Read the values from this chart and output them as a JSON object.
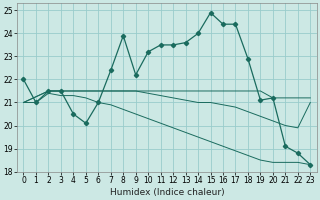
{
  "xlabel": "Humidex (Indice chaleur)",
  "bg_color": "#cce8e4",
  "grid_color": "#99cccc",
  "line_color": "#1a6b5e",
  "xlim": [
    -0.5,
    23.5
  ],
  "ylim": [
    18.0,
    25.3
  ],
  "yticks": [
    18,
    19,
    20,
    21,
    22,
    23,
    24,
    25
  ],
  "xticks": [
    0,
    1,
    2,
    3,
    4,
    5,
    6,
    7,
    8,
    9,
    10,
    11,
    12,
    13,
    14,
    15,
    16,
    17,
    18,
    19,
    20,
    21,
    22,
    23
  ],
  "line1_x": [
    0,
    1,
    2,
    3,
    4,
    5,
    6,
    7,
    8,
    9,
    10,
    11,
    12,
    13,
    14,
    15,
    16,
    17,
    18,
    19,
    20,
    21,
    22,
    23
  ],
  "line1_y": [
    22.0,
    21.0,
    21.5,
    21.5,
    20.5,
    20.1,
    21.0,
    22.4,
    23.9,
    22.2,
    23.2,
    23.5,
    23.5,
    23.6,
    24.0,
    24.9,
    24.4,
    24.4,
    22.9,
    21.1,
    21.2,
    19.1,
    18.8,
    18.3
  ],
  "line2_x": [
    0,
    2,
    3,
    4,
    5,
    6,
    7,
    8,
    9,
    10,
    11,
    12,
    13,
    14,
    15,
    16,
    17,
    18,
    19,
    20,
    21,
    22,
    23
  ],
  "line2_y": [
    21.0,
    21.5,
    21.5,
    21.5,
    21.5,
    21.5,
    21.5,
    21.5,
    21.5,
    21.5,
    21.5,
    21.5,
    21.5,
    21.5,
    21.5,
    21.5,
    21.5,
    21.5,
    21.5,
    21.2,
    21.2,
    21.2,
    21.2
  ],
  "line3_x": [
    0,
    2,
    3,
    4,
    5,
    6,
    7,
    8,
    9,
    10,
    11,
    12,
    13,
    14,
    15,
    16,
    17,
    18,
    19,
    20,
    21,
    22,
    23
  ],
  "line3_y": [
    21.0,
    21.5,
    21.5,
    21.5,
    21.5,
    21.5,
    21.5,
    21.5,
    21.5,
    21.4,
    21.3,
    21.2,
    21.1,
    21.0,
    21.0,
    20.9,
    20.8,
    20.6,
    20.4,
    20.2,
    20.0,
    19.9,
    21.0
  ],
  "line4_x": [
    0,
    1,
    2,
    3,
    4,
    5,
    6,
    7,
    8,
    9,
    10,
    11,
    12,
    13,
    14,
    15,
    16,
    17,
    18,
    19,
    20,
    21,
    22,
    23
  ],
  "line4_y": [
    21.0,
    21.0,
    21.4,
    21.3,
    21.3,
    21.2,
    21.0,
    20.9,
    20.7,
    20.5,
    20.3,
    20.1,
    19.9,
    19.7,
    19.5,
    19.3,
    19.1,
    18.9,
    18.7,
    18.5,
    18.4,
    18.4,
    18.4,
    18.3
  ]
}
